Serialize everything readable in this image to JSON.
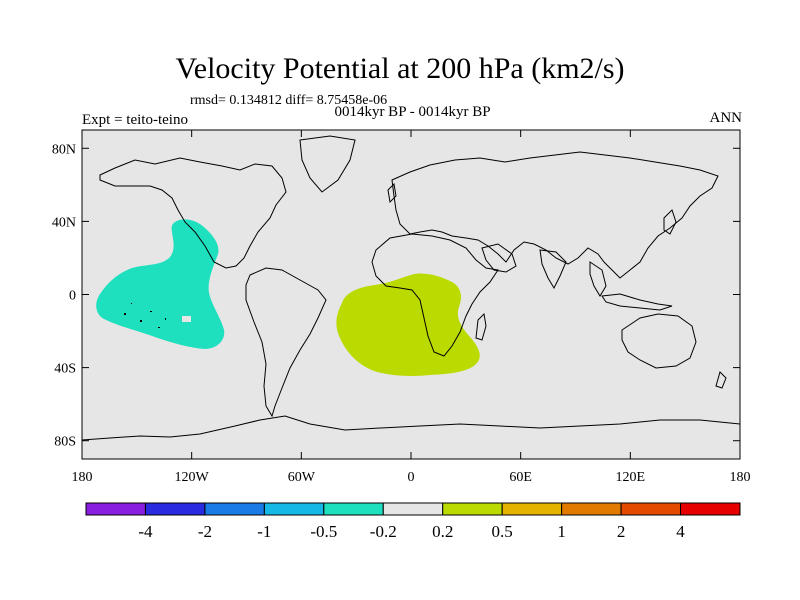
{
  "title": "Velocity Potential at 200 hPa (km2/s)",
  "stats": "rmsd= 0.134812 diff= 8.75458e-06",
  "expt_label": "Expt = teito-teino",
  "period_label": "0014kyr BP - 0014kyr BP",
  "season_label": "ANN",
  "lat_ticks": [
    {
      "lat": 80,
      "label": "80N"
    },
    {
      "lat": 40,
      "label": "40N"
    },
    {
      "lat": 0,
      "label": "0"
    },
    {
      "lat": -40,
      "label": "40S"
    },
    {
      "lat": -80,
      "label": "80S"
    }
  ],
  "lon_ticks": [
    {
      "lon": -180,
      "label": "180"
    },
    {
      "lon": -120,
      "label": "120W"
    },
    {
      "lon": -60,
      "label": "60W"
    },
    {
      "lon": 0,
      "label": "0"
    },
    {
      "lon": 60,
      "label": "60E"
    },
    {
      "lon": 120,
      "label": "120E"
    },
    {
      "lon": 180,
      "label": "180"
    }
  ],
  "colorbar": {
    "colors": [
      "#8a1ee0",
      "#2a2ae0",
      "#1a7ae6",
      "#16b8e6",
      "#1ee0bf",
      "#e6e6e6",
      "#bada00",
      "#e3b300",
      "#e37a00",
      "#e34a00",
      "#e60000"
    ],
    "labels": [
      "-4",
      "-2",
      "-1",
      "-0.5",
      "-0.2",
      "0.2",
      "0.5",
      "1",
      "2",
      "4"
    ]
  },
  "colors": {
    "background": "#e6e6e6",
    "negative_region": "#1ee0bf",
    "positive_region": "#bada00"
  }
}
